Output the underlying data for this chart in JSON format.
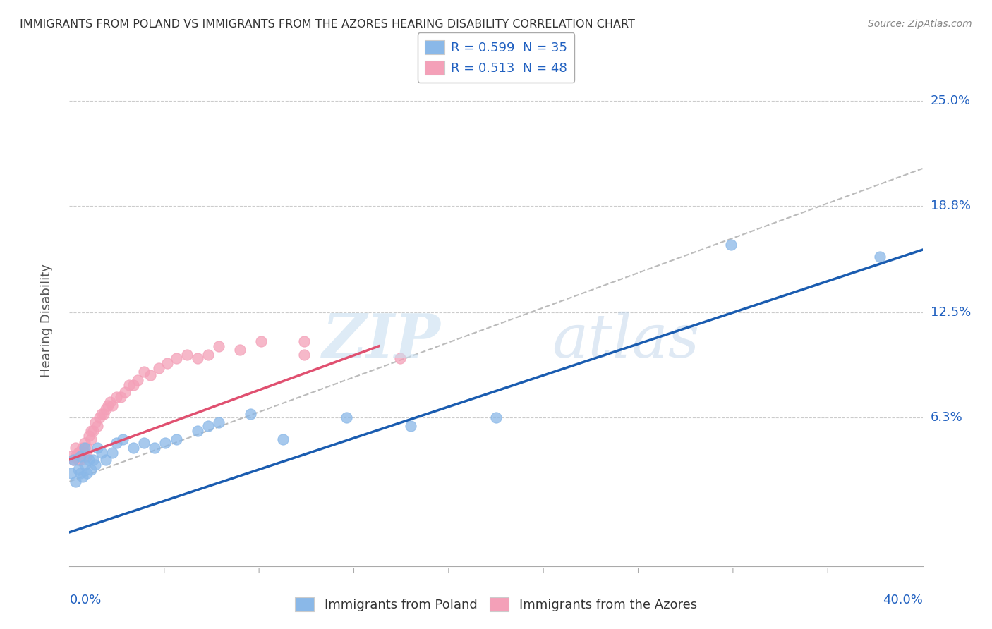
{
  "title": "IMMIGRANTS FROM POLAND VS IMMIGRANTS FROM THE AZORES HEARING DISABILITY CORRELATION CHART",
  "source": "Source: ZipAtlas.com",
  "ylabel": "Hearing Disability",
  "yticks": [
    "6.3%",
    "12.5%",
    "18.8%",
    "25.0%"
  ],
  "ytick_values": [
    0.063,
    0.125,
    0.188,
    0.25
  ],
  "xlim": [
    0.0,
    0.4
  ],
  "ylim": [
    -0.025,
    0.265
  ],
  "legend_entry_poland": "R = 0.599  N = 35",
  "legend_entry_azores": "R = 0.513  N = 48",
  "poland_trend_color": "#1a5cb0",
  "azores_trend_color": "#e05070",
  "poland_scatter_color": "#8ab8e8",
  "azores_scatter_color": "#f4a0b8",
  "dashed_line_color": "#bbbbbb",
  "background_color": "#ffffff",
  "grid_color": "#cccccc",
  "poland_scatter_x": [
    0.001,
    0.002,
    0.003,
    0.004,
    0.005,
    0.005,
    0.006,
    0.007,
    0.007,
    0.008,
    0.009,
    0.01,
    0.011,
    0.012,
    0.013,
    0.015,
    0.017,
    0.02,
    0.022,
    0.025,
    0.03,
    0.035,
    0.04,
    0.045,
    0.05,
    0.06,
    0.065,
    0.07,
    0.085,
    0.1,
    0.13,
    0.16,
    0.2,
    0.31,
    0.38
  ],
  "poland_scatter_y": [
    0.03,
    0.038,
    0.025,
    0.032,
    0.03,
    0.04,
    0.028,
    0.035,
    0.045,
    0.03,
    0.038,
    0.032,
    0.038,
    0.035,
    0.045,
    0.042,
    0.038,
    0.042,
    0.048,
    0.05,
    0.045,
    0.048,
    0.045,
    0.048,
    0.05,
    0.055,
    0.058,
    0.06,
    0.065,
    0.05,
    0.063,
    0.058,
    0.063,
    0.165,
    0.158
  ],
  "azores_scatter_x": [
    0.001,
    0.002,
    0.003,
    0.003,
    0.004,
    0.004,
    0.005,
    0.005,
    0.005,
    0.006,
    0.006,
    0.007,
    0.007,
    0.008,
    0.008,
    0.009,
    0.01,
    0.01,
    0.011,
    0.012,
    0.013,
    0.014,
    0.015,
    0.016,
    0.017,
    0.018,
    0.019,
    0.02,
    0.022,
    0.024,
    0.026,
    0.028,
    0.03,
    0.032,
    0.035,
    0.038,
    0.042,
    0.046,
    0.05,
    0.055,
    0.06,
    0.065,
    0.07,
    0.08,
    0.09,
    0.11,
    0.11,
    0.155
  ],
  "azores_scatter_y": [
    0.04,
    0.038,
    0.04,
    0.045,
    0.038,
    0.042,
    0.038,
    0.04,
    0.043,
    0.04,
    0.045,
    0.042,
    0.048,
    0.04,
    0.045,
    0.052,
    0.05,
    0.055,
    0.055,
    0.06,
    0.058,
    0.063,
    0.065,
    0.065,
    0.068,
    0.07,
    0.072,
    0.07,
    0.075,
    0.075,
    0.078,
    0.082,
    0.082,
    0.085,
    0.09,
    0.088,
    0.092,
    0.095,
    0.098,
    0.1,
    0.098,
    0.1,
    0.105,
    0.103,
    0.108,
    0.108,
    0.1,
    0.098
  ],
  "poland_line_x": [
    0.0,
    0.4
  ],
  "poland_line_y": [
    -0.005,
    0.162
  ],
  "azores_line_x": [
    0.0,
    0.145
  ],
  "azores_line_y": [
    0.038,
    0.105
  ],
  "dashed_line_x": [
    0.0,
    0.4
  ],
  "dashed_line_y": [
    0.025,
    0.21
  ],
  "watermark_zip": "ZIP",
  "watermark_atlas": "atlas"
}
